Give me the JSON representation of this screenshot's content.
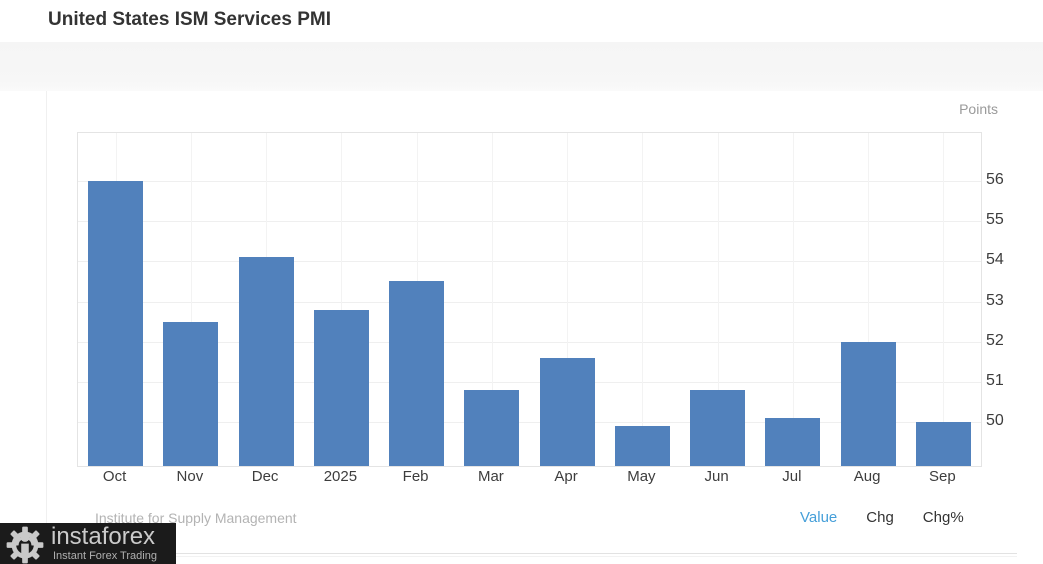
{
  "header": {
    "title": "United States ISM Services PMI"
  },
  "chart_data": {
    "type": "bar",
    "title": "United States ISM Services PMI",
    "unit_label": "Points",
    "categories": [
      "Oct",
      "Nov",
      "Dec",
      "2025",
      "Feb",
      "Mar",
      "Apr",
      "May",
      "Jun",
      "Jul",
      "Aug",
      "Sep"
    ],
    "values": [
      56.0,
      52.5,
      54.1,
      52.8,
      53.5,
      50.8,
      51.6,
      49.9,
      50.8,
      50.1,
      52.0,
      50.0
    ],
    "xlabel": "",
    "ylabel": "Points",
    "ylim": [
      48.9,
      57.2
    ],
    "yticks": [
      50,
      51,
      52,
      53,
      54,
      55,
      56
    ],
    "grid": "on",
    "legend": "none",
    "yaxis_side": "right",
    "bar_color": "#5181bc",
    "source": "Institute for Supply Management"
  },
  "footer": {
    "source": "Institute for Supply Management",
    "links": [
      {
        "label": "Value",
        "active": true
      },
      {
        "label": "Chg",
        "active": false
      },
      {
        "label": "Chg%",
        "active": false
      }
    ]
  },
  "logo": {
    "brand": "instaforex",
    "tagline": "Instant Forex Trading"
  },
  "colors": {
    "bar": "#5181bc",
    "active_link": "#459fd9",
    "link_dark": "#333333"
  }
}
